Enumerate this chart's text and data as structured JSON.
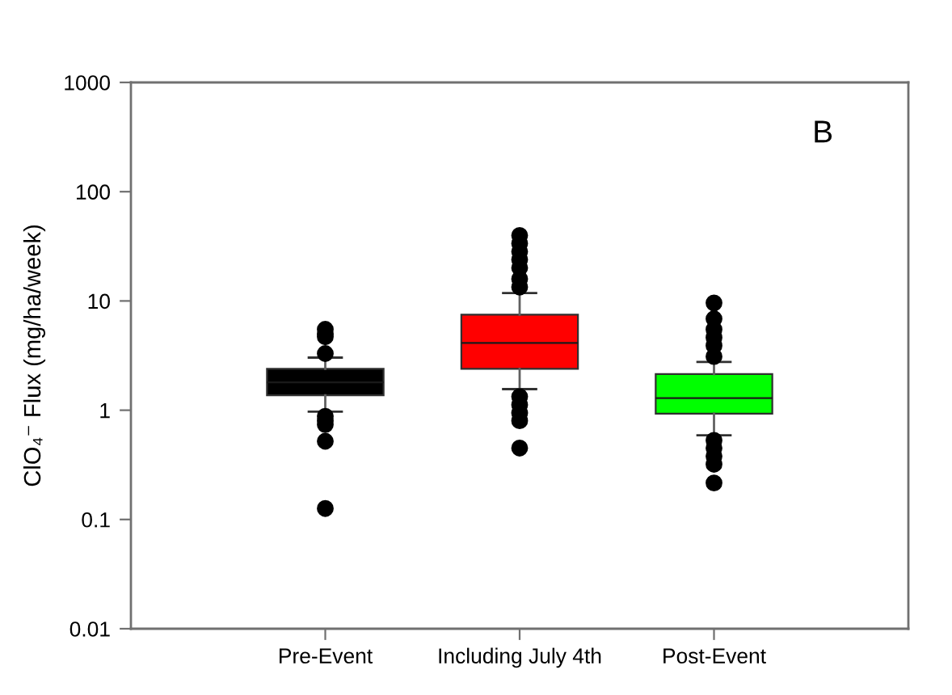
{
  "chart_data": {
    "type": "box",
    "ylabel": "ClO₄⁻ Flux (mg/ha/week)",
    "annotations": [
      "B"
    ],
    "categories": [
      "Pre-Event",
      "Including July 4th",
      "Post-Event"
    ],
    "colors": [
      "#000000",
      "#ff0000",
      "#00ff00"
    ],
    "boxes": [
      {
        "low": 0.97,
        "q1": 1.37,
        "median": 1.8,
        "q3": 2.39,
        "high": 3.03,
        "outliers": [
          5.5,
          5.0,
          4.7,
          3.3,
          0.88,
          0.8,
          0.74,
          0.52,
          0.126
        ]
      },
      {
        "low": 1.56,
        "q1": 2.39,
        "median": 4.12,
        "q3": 7.5,
        "high": 11.8,
        "outliers": [
          39.8,
          33.6,
          28.3,
          23.9,
          20.1,
          15.9,
          13.4,
          1.33,
          1.12,
          0.94,
          0.8,
          0.45
        ]
      },
      {
        "low": 0.59,
        "q1": 0.93,
        "median": 1.29,
        "q3": 2.14,
        "high": 2.77,
        "outliers": [
          9.6,
          6.86,
          5.48,
          4.62,
          3.9,
          3.1,
          0.53,
          0.45,
          0.38,
          0.32,
          0.216
        ]
      }
    ],
    "log": true,
    "ylim": [
      0.01,
      1000
    ],
    "yticks": [
      0.01,
      0.1,
      1,
      10,
      100,
      1000
    ],
    "marker": "circle"
  }
}
